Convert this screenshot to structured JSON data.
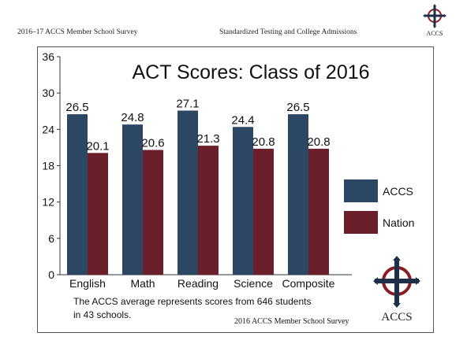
{
  "header": {
    "left_text": "2016–17 ACCS Member School Survey",
    "right_text": "Standardized Testing and College Admissions",
    "logo_text": "ACCS"
  },
  "chart_data": {
    "type": "bar",
    "title": "ACT Scores: Class of 2016",
    "categories": [
      "English",
      "Math",
      "Reading",
      "Science",
      "Composite"
    ],
    "series": [
      {
        "name": "ACCS",
        "values": [
          26.5,
          24.8,
          27.1,
          24.4,
          26.5
        ],
        "color": "#2c4763"
      },
      {
        "name": "Nation",
        "values": [
          20.1,
          20.6,
          21.3,
          20.8,
          20.8
        ],
        "color": "#6b1f2a"
      }
    ],
    "ylim": [
      0,
      36
    ],
    "yticks": [
      0,
      6,
      12,
      18,
      24,
      30,
      36
    ],
    "xlabel": "",
    "ylabel": "",
    "grid": false,
    "legend_position": "right",
    "footnote_line1": "The ACCS average represents scores from 646 students",
    "footnote_line2": "in 43 schools.",
    "source": "2016 ACCS Member School Survey",
    "logo_text": "ACCS"
  },
  "colors": {
    "accs": "#2c4763",
    "nation": "#6b1f2a",
    "logo_red": "#8a1c24",
    "logo_navy": "#1e2f4a"
  }
}
